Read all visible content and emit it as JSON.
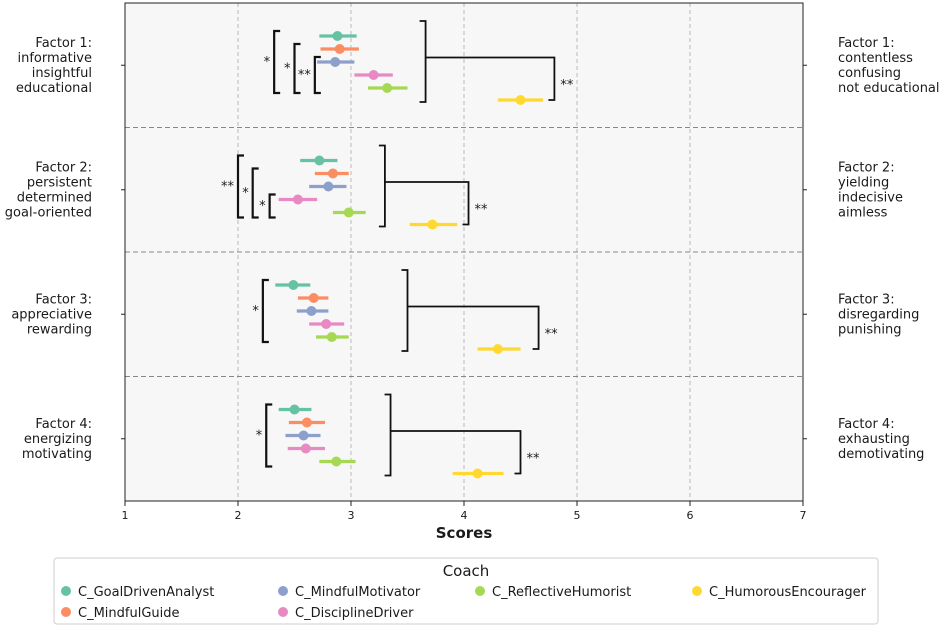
{
  "chart_data": {
    "type": "dot-errorbar",
    "xlabel": "Scores",
    "xlim": [
      1,
      7
    ],
    "xticks": [
      "1",
      "2",
      "3",
      "4",
      "5",
      "6",
      "7"
    ],
    "xtick_values": [
      1,
      2,
      3,
      4,
      5,
      6,
      7
    ],
    "grid": true,
    "legend": {
      "title": "Coach",
      "placement": "bottom-center",
      "entries": [
        {
          "name": "C_GoalDrivenAnalyst",
          "color": "#66c2a5"
        },
        {
          "name": "C_MindfulGuide",
          "color": "#fc8d62"
        },
        {
          "name": "C_MindfulMotivator",
          "color": "#8da0cb"
        },
        {
          "name": "C_DisciplineDriver",
          "color": "#e78ac3"
        },
        {
          "name": "C_ReflectiveHumorist",
          "color": "#a6d854"
        },
        {
          "name": "C_HumorousEncourager",
          "color": "#ffd92f"
        }
      ]
    },
    "factors": [
      {
        "left_label": [
          "Factor 1:",
          "informative",
          "insightful",
          "educational"
        ],
        "right_label": [
          "Factor 1:",
          "contentless",
          "confusing",
          "not educational"
        ],
        "points": [
          {
            "coach": "C_GoalDrivenAnalyst",
            "mean": 2.88,
            "low": 2.72,
            "high": 3.05
          },
          {
            "coach": "C_MindfulGuide",
            "mean": 2.9,
            "low": 2.73,
            "high": 3.07
          },
          {
            "coach": "C_MindfulMotivator",
            "mean": 2.86,
            "low": 2.7,
            "high": 3.03
          },
          {
            "coach": "C_DisciplineDriver",
            "mean": 3.2,
            "low": 3.03,
            "high": 3.37
          },
          {
            "coach": "C_ReflectiveHumorist",
            "mean": 3.32,
            "low": 3.15,
            "high": 3.5
          },
          {
            "coach": "C_HumorousEncourager",
            "mean": 4.5,
            "low": 4.3,
            "high": 4.7
          }
        ],
        "sig_left": [
          {
            "from": "C_GoalDrivenAnalyst",
            "to": "C_ReflectiveHumorist",
            "x": 2.32,
            "label": "*"
          },
          {
            "from": "C_MindfulGuide",
            "to": "C_ReflectiveHumorist",
            "x": 2.5,
            "label": "*"
          },
          {
            "from": "C_MindfulMotivator",
            "to": "C_ReflectiveHumorist",
            "x": 2.68,
            "label": "**"
          }
        ],
        "sig_right": {
          "group_x": 3.66,
          "arm_x": 4.8,
          "label": "**"
        }
      },
      {
        "left_label": [
          "Factor 2:",
          "persistent",
          "determined",
          "goal-oriented"
        ],
        "right_label": [
          "Factor 2:",
          "yielding",
          "indecisive",
          "aimless"
        ],
        "points": [
          {
            "coach": "C_GoalDrivenAnalyst",
            "mean": 2.72,
            "low": 2.55,
            "high": 2.88
          },
          {
            "coach": "C_MindfulGuide",
            "mean": 2.84,
            "low": 2.68,
            "high": 2.98
          },
          {
            "coach": "C_MindfulMotivator",
            "mean": 2.8,
            "low": 2.63,
            "high": 2.96
          },
          {
            "coach": "C_DisciplineDriver",
            "mean": 2.53,
            "low": 2.36,
            "high": 2.7
          },
          {
            "coach": "C_ReflectiveHumorist",
            "mean": 2.98,
            "low": 2.84,
            "high": 3.13
          },
          {
            "coach": "C_HumorousEncourager",
            "mean": 3.72,
            "low": 3.52,
            "high": 3.94
          }
        ],
        "sig_left": [
          {
            "from": "C_GoalDrivenAnalyst",
            "to": "C_ReflectiveHumorist",
            "x": 2.0,
            "label": "**"
          },
          {
            "from": "C_MindfulGuide",
            "to": "C_ReflectiveHumorist",
            "x": 2.13,
            "label": "*"
          },
          {
            "from": "C_DisciplineDriver",
            "to": "C_ReflectiveHumorist",
            "x": 2.28,
            "label": "*"
          }
        ],
        "sig_right": {
          "group_x": 3.3,
          "arm_x": 4.04,
          "label": "**"
        }
      },
      {
        "left_label": [
          "Factor 3:",
          "appreciative",
          "rewarding"
        ],
        "right_label": [
          "Factor 3:",
          "disregarding",
          "punishing"
        ],
        "points": [
          {
            "coach": "C_GoalDrivenAnalyst",
            "mean": 2.49,
            "low": 2.33,
            "high": 2.64
          },
          {
            "coach": "C_MindfulGuide",
            "mean": 2.67,
            "low": 2.53,
            "high": 2.8
          },
          {
            "coach": "C_MindfulMotivator",
            "mean": 2.65,
            "low": 2.52,
            "high": 2.8
          },
          {
            "coach": "C_DisciplineDriver",
            "mean": 2.78,
            "low": 2.63,
            "high": 2.94
          },
          {
            "coach": "C_ReflectiveHumorist",
            "mean": 2.83,
            "low": 2.69,
            "high": 2.98
          },
          {
            "coach": "C_HumorousEncourager",
            "mean": 4.3,
            "low": 4.12,
            "high": 4.5
          }
        ],
        "sig_left": [
          {
            "from": "C_GoalDrivenAnalyst",
            "to": "C_ReflectiveHumorist",
            "x": 2.22,
            "label": "*"
          }
        ],
        "sig_right": {
          "group_x": 3.5,
          "arm_x": 4.66,
          "label": "**"
        }
      },
      {
        "left_label": [
          "Factor 4:",
          "energizing",
          "motivating"
        ],
        "right_label": [
          "Factor 4:",
          "exhausting",
          "demotivating"
        ],
        "points": [
          {
            "coach": "C_GoalDrivenAnalyst",
            "mean": 2.5,
            "low": 2.36,
            "high": 2.65
          },
          {
            "coach": "C_MindfulGuide",
            "mean": 2.61,
            "low": 2.45,
            "high": 2.77
          },
          {
            "coach": "C_MindfulMotivator",
            "mean": 2.58,
            "low": 2.42,
            "high": 2.73
          },
          {
            "coach": "C_DisciplineDriver",
            "mean": 2.6,
            "low": 2.44,
            "high": 2.77
          },
          {
            "coach": "C_ReflectiveHumorist",
            "mean": 2.87,
            "low": 2.72,
            "high": 3.04
          },
          {
            "coach": "C_HumorousEncourager",
            "mean": 4.12,
            "low": 3.9,
            "high": 4.35
          }
        ],
        "sig_left": [
          {
            "from": "C_GoalDrivenAnalyst",
            "to": "C_ReflectiveHumorist",
            "x": 2.25,
            "label": "*"
          }
        ],
        "sig_right": {
          "group_x": 3.35,
          "arm_x": 4.5,
          "label": "**"
        }
      }
    ]
  }
}
